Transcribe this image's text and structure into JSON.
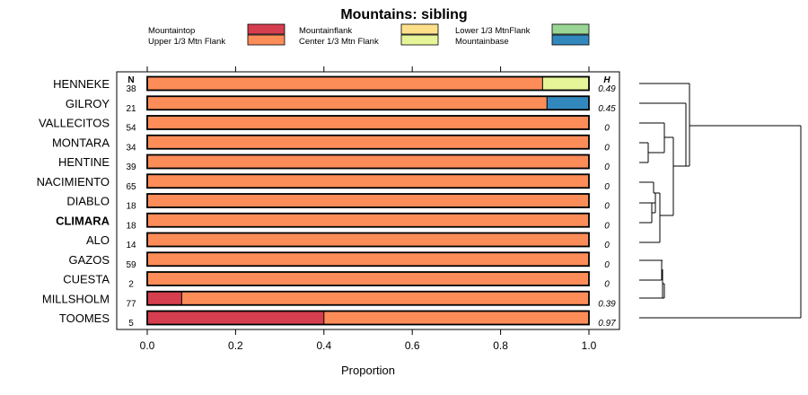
{
  "chart_data": {
    "type": "bar",
    "stacked": "horizontal-proportion",
    "title": "Mountains: sibling",
    "xlabel": "Proportion",
    "xlim": [
      0,
      1
    ],
    "xticks": [
      "0.0",
      "0.2",
      "0.4",
      "0.6",
      "0.8",
      "1.0"
    ],
    "n_header": "N",
    "h_header": "H",
    "legend": [
      {
        "name": "Mountaintop",
        "color": "#d53e4f"
      },
      {
        "name": "Upper 1/3 Mtn Flank",
        "color": "#fc8d59"
      },
      {
        "name": "Mountainflank",
        "color": "#fee08b"
      },
      {
        "name": "Center 1/3 Mtn Flank",
        "color": "#e6f598"
      },
      {
        "name": "Lower 1/3 MtnFlank",
        "color": "#99d594"
      },
      {
        "name": "Mountainbase",
        "color": "#3288bd"
      }
    ],
    "categories": [
      "HENNEKE",
      "GILROY",
      "VALLECITOS",
      "MONTARA",
      "HENTINE",
      "NACIMIENTO",
      "DIABLO",
      "CLIMARA",
      "ALO",
      "GAZOS",
      "CUESTA",
      "MILLSHOLM",
      "TOOMES"
    ],
    "highlight": "CLIMARA",
    "n": [
      "38",
      "21",
      "54",
      "34",
      "39",
      "65",
      "18",
      "18",
      "14",
      "59",
      "2",
      "77",
      "5"
    ],
    "h": [
      "0.49",
      "0.45",
      "0",
      "0",
      "0",
      "0",
      "0",
      "0",
      "0",
      "0",
      "0",
      "0.39",
      "0.97"
    ],
    "series": [
      {
        "name": "Mountaintop",
        "values": [
          0,
          0,
          0,
          0,
          0,
          0,
          0,
          0,
          0,
          0,
          0,
          0.078,
          0.4
        ]
      },
      {
        "name": "Upper 1/3 Mtn Flank",
        "values": [
          0.895,
          0.905,
          1,
          1,
          1,
          1,
          1,
          1,
          1,
          1,
          1,
          0.922,
          0.6
        ]
      },
      {
        "name": "Mountainflank",
        "values": [
          0,
          0,
          0,
          0,
          0,
          0,
          0,
          0,
          0,
          0,
          0,
          0,
          0
        ]
      },
      {
        "name": "Center 1/3 Mtn Flank",
        "values": [
          0.105,
          0,
          0,
          0,
          0,
          0,
          0,
          0,
          0,
          0,
          0,
          0,
          0
        ]
      },
      {
        "name": "Lower 1/3 MtnFlank",
        "values": [
          0,
          0,
          0,
          0,
          0,
          0,
          0,
          0,
          0,
          0,
          0,
          0,
          0
        ]
      },
      {
        "name": "Mountainbase",
        "values": [
          0,
          0.095,
          0,
          0,
          0,
          0,
          0,
          0,
          0,
          0,
          0,
          0,
          0
        ]
      }
    ]
  }
}
